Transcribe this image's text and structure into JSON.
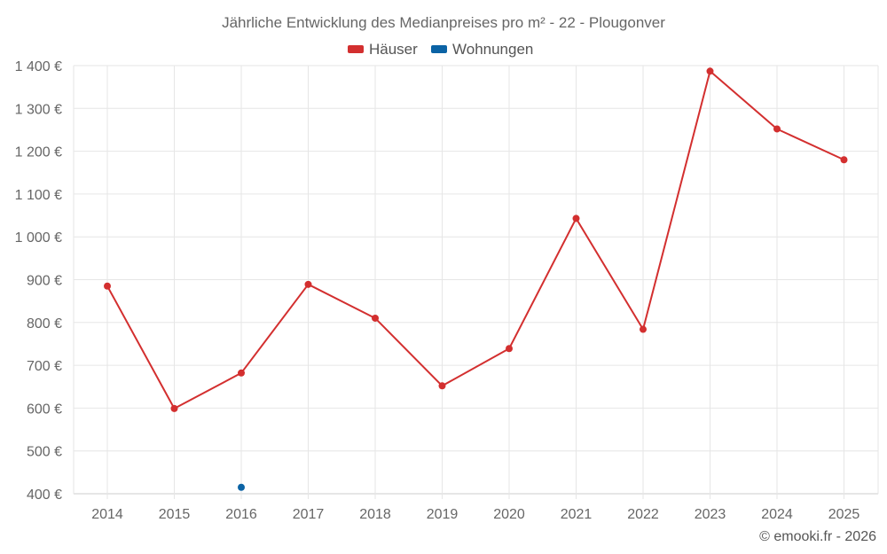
{
  "chart_data": {
    "type": "line",
    "title": "Jährliche Entwicklung des Medianpreises pro m² - 22 - Plougonver",
    "categories": [
      "2014",
      "2015",
      "2016",
      "2017",
      "2018",
      "2019",
      "2020",
      "2021",
      "2022",
      "2023",
      "2024",
      "2025"
    ],
    "series": [
      {
        "name": "Häuser",
        "color": "#d32f2f",
        "values": [
          885,
          599,
          682,
          889,
          810,
          652,
          739,
          1043,
          784,
          1387,
          1252,
          1180
        ]
      },
      {
        "name": "Wohnungen",
        "color": "#0b63a5",
        "values": [
          null,
          null,
          415,
          null,
          null,
          null,
          null,
          null,
          null,
          null,
          null,
          null
        ]
      }
    ],
    "ylim": [
      400,
      1400
    ],
    "yticks": [
      400,
      500,
      600,
      700,
      800,
      900,
      1000,
      1100,
      1200,
      1300,
      1400
    ],
    "ytick_labels": [
      "400 €",
      "500 €",
      "600 €",
      "700 €",
      "800 €",
      "900 €",
      "1 000 €",
      "1 100 €",
      "1 200 €",
      "1 300 €",
      "1 400 €"
    ],
    "xlabel": "",
    "ylabel": "",
    "grid": true,
    "legend": "top-center"
  },
  "credit": "© emooki.fr - 2026"
}
